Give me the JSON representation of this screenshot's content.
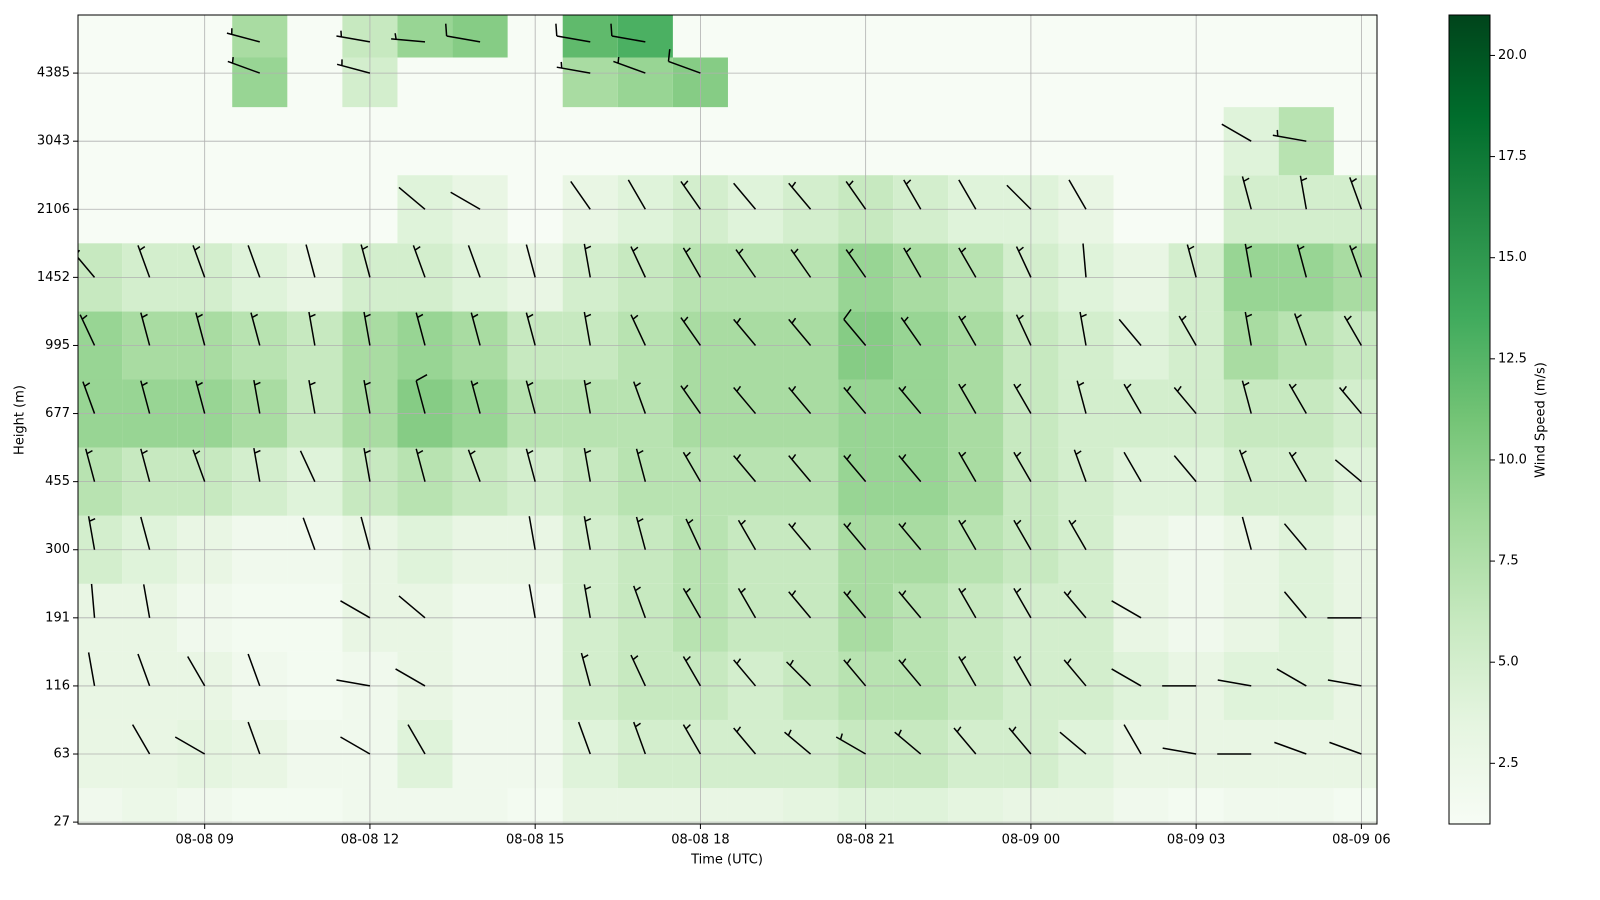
{
  "chart_data": {
    "type": "heatmap",
    "xlabel": "Time (UTC)",
    "ylabel": "Height (m)",
    "colorbar_label": "Wind Speed (m/s)",
    "colormap": "Greens",
    "grid": true,
    "yscale": "ticks",
    "x": [
      "08-08 07",
      "08-08 08",
      "08-08 09",
      "08-08 10",
      "08-08 11",
      "08-08 12",
      "08-08 13",
      "08-08 14",
      "08-08 15",
      "08-08 16",
      "08-08 17",
      "08-08 18",
      "08-08 19",
      "08-08 20",
      "08-08 21",
      "08-08 22",
      "08-08 23",
      "08-09 00",
      "08-09 01",
      "08-09 02",
      "08-09 03",
      "08-09 04",
      "08-09 05",
      "08-09 06"
    ],
    "heights": [
      27,
      63,
      116,
      191,
      300,
      455,
      677,
      995,
      1452,
      2106,
      3043,
      4385,
      5000
    ],
    "speed": [
      [
        2,
        2.5,
        2,
        1.5,
        1.5,
        2,
        2,
        2,
        1.5,
        3,
        3,
        3,
        3,
        3.5,
        4,
        4,
        3.5,
        3,
        3,
        2,
        1.5,
        2,
        2,
        1.5
      ],
      [
        3,
        3,
        3.5,
        3,
        2,
        2,
        4,
        2,
        2,
        4,
        5,
        5,
        5,
        5,
        6,
        6,
        5,
        5,
        4,
        3,
        3,
        3,
        3,
        3
      ],
      [
        3,
        3,
        3,
        2,
        1.5,
        2,
        3,
        2,
        2,
        5,
        6,
        6,
        5,
        6,
        7,
        7,
        6,
        5,
        5,
        4,
        3,
        4,
        4,
        3
      ],
      [
        3,
        3,
        2,
        1.5,
        1.5,
        3,
        3,
        2,
        2,
        5,
        6,
        7,
        6,
        6,
        8,
        7,
        6,
        5,
        5,
        3,
        2,
        3,
        4,
        3
      ],
      [
        5,
        4,
        3,
        2,
        2,
        3,
        4,
        3,
        3,
        5,
        6,
        7,
        6,
        6,
        8,
        8,
        7,
        6,
        5,
        3,
        2,
        3,
        4,
        3
      ],
      [
        7,
        6,
        6,
        5,
        4,
        6,
        7,
        6,
        5,
        6,
        7,
        7,
        7,
        7,
        9,
        9,
        8,
        6,
        5,
        4,
        4,
        5,
        5,
        4
      ],
      [
        9,
        9,
        9,
        8,
        6,
        8,
        10,
        9,
        7,
        7,
        7,
        8,
        8,
        8,
        9,
        9,
        8,
        6,
        5,
        5,
        5,
        6,
        6,
        5
      ],
      [
        9,
        8,
        8,
        7,
        6,
        8,
        9,
        8,
        6,
        6,
        7,
        8,
        8,
        8,
        10,
        9,
        8,
        6,
        5,
        4,
        5,
        8,
        7,
        6
      ],
      [
        6,
        5,
        5,
        4,
        3,
        5,
        5,
        4,
        3,
        5,
        6,
        7,
        7,
        7,
        9,
        8,
        7,
        5,
        4,
        3,
        5,
        9,
        9,
        8
      ],
      [
        null,
        null,
        null,
        null,
        null,
        null,
        4,
        3,
        null,
        3,
        4,
        5,
        4,
        5,
        6,
        5,
        4,
        4,
        3,
        null,
        null,
        5,
        5,
        5
      ],
      [
        null,
        null,
        null,
        null,
        null,
        null,
        null,
        null,
        null,
        null,
        null,
        null,
        null,
        null,
        null,
        null,
        null,
        null,
        null,
        null,
        null,
        4,
        7,
        null
      ],
      [
        null,
        null,
        null,
        9,
        null,
        5,
        null,
        null,
        null,
        8,
        9,
        10,
        null,
        null,
        null,
        null,
        null,
        null,
        null,
        null,
        null,
        null,
        null,
        null
      ],
      [
        null,
        null,
        null,
        8,
        null,
        6,
        9,
        10,
        null,
        12,
        13,
        null,
        null,
        null,
        null,
        null,
        null,
        null,
        null,
        null,
        null,
        null,
        null,
        null
      ]
    ],
    "direction": [
      [
        null,
        null,
        null,
        null,
        null,
        null,
        null,
        null,
        null,
        null,
        null,
        null,
        null,
        null,
        null,
        null,
        null,
        null,
        null,
        null,
        null,
        null,
        null,
        null
      ],
      [
        null,
        330,
        300,
        340,
        null,
        300,
        330,
        null,
        null,
        340,
        340,
        330,
        320,
        310,
        300,
        310,
        320,
        320,
        310,
        330,
        280,
        270,
        290,
        290
      ],
      [
        350,
        340,
        330,
        340,
        null,
        280,
        300,
        null,
        null,
        345,
        335,
        330,
        320,
        315,
        320,
        320,
        330,
        330,
        320,
        300,
        270,
        280,
        300,
        280
      ],
      [
        355,
        350,
        null,
        null,
        null,
        300,
        310,
        null,
        350,
        350,
        340,
        330,
        330,
        320,
        320,
        320,
        330,
        330,
        320,
        300,
        null,
        null,
        320,
        270
      ],
      [
        350,
        345,
        null,
        null,
        340,
        345,
        null,
        null,
        350,
        350,
        345,
        335,
        330,
        320,
        320,
        320,
        330,
        330,
        330,
        null,
        null,
        345,
        320,
        null
      ],
      [
        345,
        345,
        340,
        350,
        335,
        350,
        345,
        340,
        345,
        350,
        345,
        330,
        320,
        320,
        320,
        320,
        330,
        330,
        340,
        330,
        320,
        340,
        330,
        310
      ],
      [
        340,
        345,
        345,
        350,
        350,
        350,
        345,
        345,
        345,
        350,
        340,
        325,
        320,
        320,
        320,
        320,
        330,
        330,
        345,
        330,
        320,
        345,
        330,
        320
      ],
      [
        335,
        345,
        345,
        345,
        350,
        350,
        345,
        345,
        345,
        350,
        335,
        325,
        320,
        320,
        320,
        325,
        330,
        335,
        350,
        320,
        330,
        350,
        340,
        330
      ],
      [
        320,
        340,
        340,
        340,
        345,
        345,
        340,
        340,
        345,
        350,
        335,
        330,
        325,
        325,
        325,
        330,
        330,
        335,
        355,
        null,
        345,
        350,
        345,
        340
      ],
      [
        null,
        null,
        null,
        null,
        null,
        null,
        310,
        300,
        null,
        325,
        330,
        325,
        320,
        320,
        325,
        330,
        330,
        315,
        330,
        null,
        null,
        345,
        350,
        340
      ],
      [
        null,
        null,
        null,
        null,
        null,
        null,
        null,
        null,
        null,
        null,
        null,
        null,
        null,
        null,
        null,
        null,
        null,
        null,
        null,
        null,
        null,
        300,
        280,
        null
      ],
      [
        null,
        null,
        null,
        290,
        null,
        285,
        null,
        null,
        null,
        280,
        290,
        290,
        null,
        null,
        null,
        null,
        null,
        null,
        null,
        null,
        null,
        null,
        null,
        null
      ],
      [
        null,
        null,
        null,
        285,
        null,
        280,
        275,
        280,
        null,
        280,
        280,
        null,
        null,
        null,
        null,
        null,
        null,
        null,
        null,
        null,
        null,
        null,
        null,
        null
      ]
    ],
    "xlim": [
      "08-08 06:42",
      "08-09 06:17"
    ],
    "xticks": [
      "08-08 09",
      "08-08 12",
      "08-08 15",
      "08-08 18",
      "08-08 21",
      "08-09 00",
      "08-09 03",
      "08-09 06"
    ],
    "ylim": [
      26,
      5530
    ],
    "yticks": [
      27,
      63,
      116,
      191,
      300,
      455,
      677,
      995,
      1452,
      2106,
      3043,
      4385
    ],
    "clim": [
      1.0,
      21.0
    ],
    "cticks": [
      {
        "value": 2.5,
        "label": "2.5"
      },
      {
        "value": 5,
        "label": "5.0"
      },
      {
        "value": 7.5,
        "label": "7.5"
      },
      {
        "value": 10,
        "label": "10.0"
      },
      {
        "value": 12.5,
        "label": "12.5"
      },
      {
        "value": 15,
        "label": "15.0"
      },
      {
        "value": 17.5,
        "label": "17.5"
      },
      {
        "value": 20,
        "label": "20.0"
      }
    ]
  }
}
